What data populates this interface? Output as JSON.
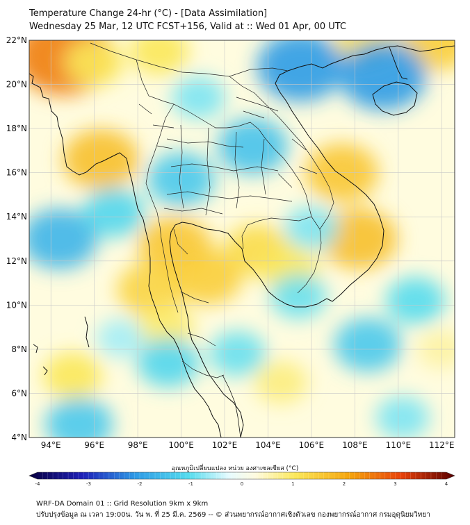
{
  "title_line1": "Temperature Change 24-hr (°C) - [Data Assimilation]",
  "title_line2": "Wednesday 25 Mar, 12 UTC FCST+156, Valid at :: Wed 01 Apr, 00 UTC",
  "map": {
    "lat_range": [
      4,
      22
    ],
    "lon_range": [
      93,
      112.6
    ],
    "lat_ticks": [
      {
        "value": 4,
        "label": "4°N"
      },
      {
        "value": 6,
        "label": "6°N"
      },
      {
        "value": 8,
        "label": "8°N"
      },
      {
        "value": 10,
        "label": "10°N"
      },
      {
        "value": 12,
        "label": "12°N"
      },
      {
        "value": 14,
        "label": "14°N"
      },
      {
        "value": 16,
        "label": "16°N"
      },
      {
        "value": 18,
        "label": "18°N"
      },
      {
        "value": 20,
        "label": "20°N"
      },
      {
        "value": 22,
        "label": "22°N"
      }
    ],
    "lon_ticks": [
      {
        "value": 94,
        "label": "94°E"
      },
      {
        "value": 96,
        "label": "96°E"
      },
      {
        "value": 98,
        "label": "98°E"
      },
      {
        "value": 100,
        "label": "100°E"
      },
      {
        "value": 102,
        "label": "102°E"
      },
      {
        "value": 104,
        "label": "104°E"
      },
      {
        "value": 106,
        "label": "106°E"
      },
      {
        "value": 108,
        "label": "108°E"
      },
      {
        "value": 110,
        "label": "110°E"
      },
      {
        "value": 112,
        "label": "112°E"
      }
    ],
    "field_anomalies": [
      {
        "lon": 94.6,
        "lat": 21.3,
        "value": 2.4
      },
      {
        "lon": 96.0,
        "lat": 21.0,
        "value": 1.0
      },
      {
        "lon": 99.0,
        "lat": 21.5,
        "value": 1.0
      },
      {
        "lon": 96.3,
        "lat": 16.6,
        "value": 1.6
      },
      {
        "lon": 99.7,
        "lat": 12.7,
        "value": 1.5
      },
      {
        "lon": 101.2,
        "lat": 11.3,
        "value": 1.4
      },
      {
        "lon": 98.6,
        "lat": 10.7,
        "value": 1.3
      },
      {
        "lon": 99.3,
        "lat": 9.0,
        "value": 0.9
      },
      {
        "lon": 107.4,
        "lat": 16.0,
        "value": 1.5
      },
      {
        "lon": 108.2,
        "lat": 13.0,
        "value": 1.6
      },
      {
        "lon": 103.5,
        "lat": 12.5,
        "value": 1.2
      },
      {
        "lon": 105.0,
        "lat": 11.6,
        "value": 1.0
      },
      {
        "lon": 111.8,
        "lat": 21.9,
        "value": 1.4
      },
      {
        "lon": 108.5,
        "lat": 22.0,
        "value": 1.1
      },
      {
        "lon": 95.0,
        "lat": 6.8,
        "value": 1.0
      },
      {
        "lon": 104.6,
        "lat": 6.5,
        "value": 0.8
      },
      {
        "lon": 112.0,
        "lat": 8.0,
        "value": 0.6
      },
      {
        "lon": 105.5,
        "lat": 20.8,
        "value": -2.0
      },
      {
        "lon": 109.3,
        "lat": 20.4,
        "value": -2.0
      },
      {
        "lon": 100.0,
        "lat": 15.7,
        "value": -1.3
      },
      {
        "lon": 103.3,
        "lat": 17.2,
        "value": -1.4
      },
      {
        "lon": 94.4,
        "lat": 13.0,
        "value": -1.6
      },
      {
        "lon": 96.9,
        "lat": 14.2,
        "value": -1.1
      },
      {
        "lon": 95.3,
        "lat": 4.6,
        "value": -1.3
      },
      {
        "lon": 99.4,
        "lat": 7.4,
        "value": -1.1
      },
      {
        "lon": 100.8,
        "lat": 19.4,
        "value": -0.8
      },
      {
        "lon": 102.6,
        "lat": 7.8,
        "value": -0.9
      },
      {
        "lon": 105.4,
        "lat": 10.4,
        "value": -0.9
      },
      {
        "lon": 106.0,
        "lat": 13.5,
        "value": -0.8
      },
      {
        "lon": 108.6,
        "lat": 8.2,
        "value": -1.3
      },
      {
        "lon": 110.8,
        "lat": 10.2,
        "value": -1.0
      },
      {
        "lon": 110.2,
        "lat": 4.9,
        "value": -0.8
      },
      {
        "lon": 97.2,
        "lat": 8.5,
        "value": -0.6
      }
    ]
  },
  "colorbar": {
    "title": "อุณหภูมิเปลี่ยนแปลง หน่วย องศาเซลเซียส (°C)",
    "min": -4,
    "max": 4,
    "ticks": [
      {
        "value": -4,
        "label": "-4"
      },
      {
        "value": -3,
        "label": "-3"
      },
      {
        "value": -2,
        "label": "-2"
      },
      {
        "value": -1,
        "label": "-1"
      },
      {
        "value": 0,
        "label": "0"
      },
      {
        "value": 1,
        "label": "1"
      },
      {
        "value": 2,
        "label": "2"
      },
      {
        "value": 3,
        "label": "3"
      },
      {
        "value": 4,
        "label": "4"
      }
    ],
    "stops": [
      {
        "value": -4,
        "color": "#08003f"
      },
      {
        "value": -3,
        "color": "#1e20b8"
      },
      {
        "value": -2,
        "color": "#2f9be6"
      },
      {
        "value": -1,
        "color": "#55dcee"
      },
      {
        "value": -0.25,
        "color": "#e6fbff"
      },
      {
        "value": 0.25,
        "color": "#fffbe0"
      },
      {
        "value": 1,
        "color": "#fbe85a"
      },
      {
        "value": 2,
        "color": "#f5a60d"
      },
      {
        "value": 3,
        "color": "#e8420a"
      },
      {
        "value": 4,
        "color": "#5a0000"
      }
    ]
  },
  "footer_line1": "WRF-DA Domain 01 :: Grid Resolution 9km x 9km",
  "footer_line2": "ปรับปรุงข้อมูล ณ เวลา 19:00น. วัน พ. ที่ 25 มี.ค. 2569 -- © ส่วนพยากรณ์อากาศเชิงตัวเลข กองพยากรณ์อากาศ กรมอุตุนิยมวิทยา",
  "colors": {
    "coastline": "#111111",
    "border": "#222222",
    "grid": "#c8c8c8"
  }
}
